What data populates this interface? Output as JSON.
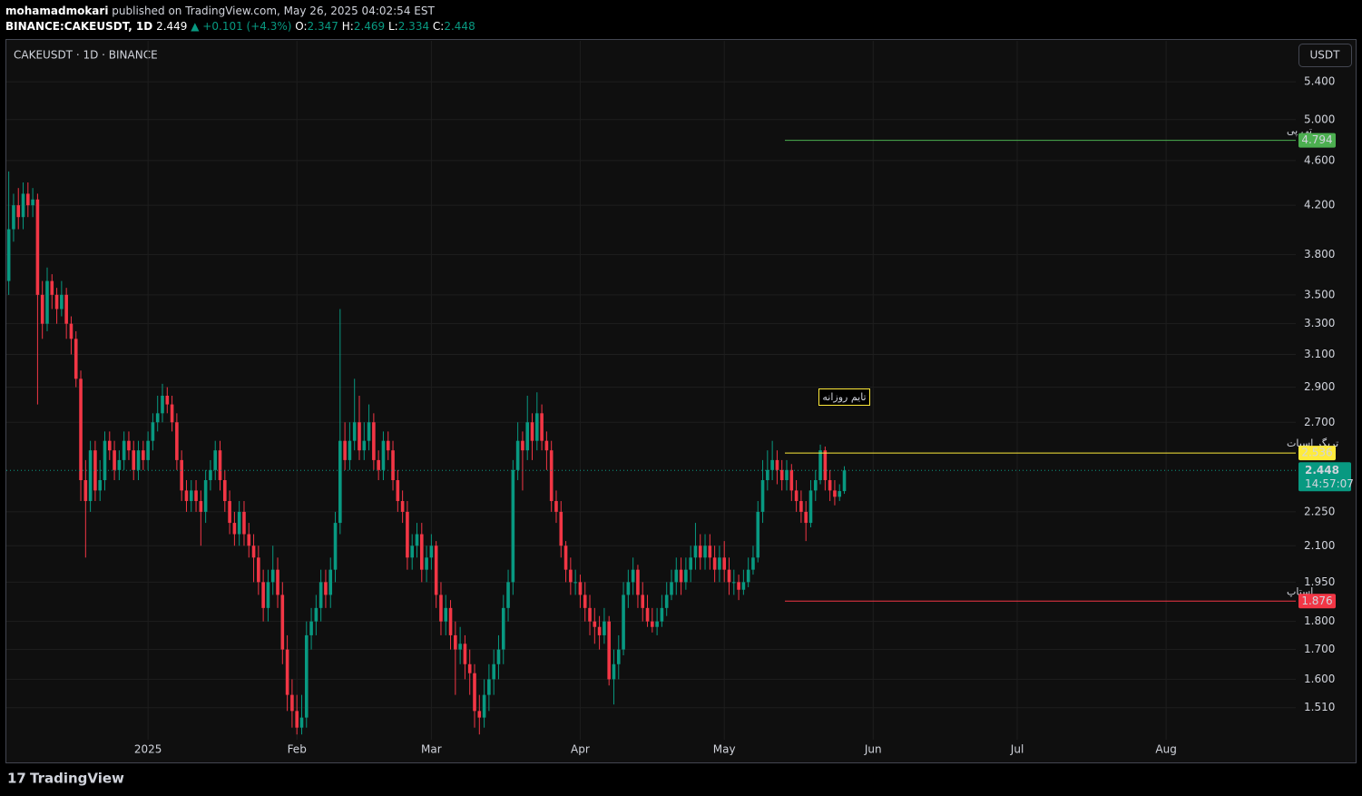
{
  "header": {
    "author": "mohamadmokari",
    "published": "published on TradingView.com, May 26, 2025 04:02:54 EST",
    "symbol": "BINANCE:CAKEUSDT, 1D",
    "last": "2.449",
    "change": "▲ +0.101 (+4.3%)",
    "legend": [
      {
        "label": "O:",
        "value": "2.347"
      },
      {
        "label": "H:",
        "value": "2.469"
      },
      {
        "label": "L:",
        "value": "2.334"
      },
      {
        "label": "C:",
        "value": "2.448"
      }
    ]
  },
  "pane_title": "CAKEUSDT · 1D · BINANCE",
  "currency": "USDT",
  "countdown": "14:57:07",
  "logo": "TradingView",
  "annotation": "تایم روزانه",
  "chart_data": {
    "type": "candlestick",
    "ylog": true,
    "grid": true,
    "up_color": "#089981",
    "down_color": "#f23645",
    "xlim": [
      -0.5,
      268
    ],
    "ylim": [
      1.42,
      5.87
    ],
    "xticks": [
      {
        "value": 29,
        "label": "2025"
      },
      {
        "value": 60,
        "label": "Feb"
      },
      {
        "value": 88,
        "label": "Mar"
      },
      {
        "value": 119,
        "label": "Apr"
      },
      {
        "value": 149,
        "label": "May"
      },
      {
        "value": 180,
        "label": "Jun"
      },
      {
        "value": 210,
        "label": "Jul"
      },
      {
        "value": 241,
        "label": "Aug"
      }
    ],
    "yticks": [
      {
        "value": 5.4,
        "label": "5.400"
      },
      {
        "value": 5,
        "label": "5.000"
      },
      {
        "value": 4.6,
        "label": "4.600"
      },
      {
        "value": 4.2,
        "label": "4.200"
      },
      {
        "value": 3.8,
        "label": "3.800"
      },
      {
        "value": 3.5,
        "label": "3.500"
      },
      {
        "value": 3.3,
        "label": "3.300"
      },
      {
        "value": 3.1,
        "label": "3.100"
      },
      {
        "value": 2.9,
        "label": "2.900"
      },
      {
        "value": 2.7,
        "label": "2.700"
      },
      {
        "value": 2.25,
        "label": "2.250"
      },
      {
        "value": 2.1,
        "label": "2.100"
      },
      {
        "value": 1.95,
        "label": "1.950"
      },
      {
        "value": 1.8,
        "label": "1.800"
      },
      {
        "value": 1.7,
        "label": "1.700"
      },
      {
        "value": 1.6,
        "label": "1.600"
      },
      {
        "value": 1.51,
        "label": "1.510"
      }
    ],
    "levels": [
      {
        "label": "تی پی",
        "value": 4.794,
        "color": "#4caf50"
      },
      {
        "label": "تریگر اسپات",
        "value": 2.536,
        "color": "#ffeb3b"
      },
      {
        "label": "استاپ",
        "value": 1.876,
        "color": "#f23645"
      }
    ],
    "ohlc": [
      [
        3.6,
        4.5,
        3.5,
        4.0
      ],
      [
        4.0,
        4.3,
        3.9,
        4.2
      ],
      [
        4.2,
        4.35,
        4.0,
        4.1
      ],
      [
        4.1,
        4.4,
        4.0,
        4.3
      ],
      [
        4.3,
        4.4,
        4.1,
        4.2
      ],
      [
        4.2,
        4.35,
        4.1,
        4.25
      ],
      [
        4.25,
        4.3,
        2.8,
        3.5
      ],
      [
        3.5,
        3.6,
        3.2,
        3.3
      ],
      [
        3.3,
        3.7,
        3.25,
        3.6
      ],
      [
        3.6,
        3.65,
        3.4,
        3.5
      ],
      [
        3.5,
        3.55,
        3.3,
        3.4
      ],
      [
        3.4,
        3.6,
        3.35,
        3.5
      ],
      [
        3.5,
        3.55,
        3.2,
        3.3
      ],
      [
        3.3,
        3.35,
        3.1,
        3.2
      ],
      [
        3.2,
        3.25,
        2.9,
        2.95
      ],
      [
        2.95,
        3.0,
        2.3,
        2.4
      ],
      [
        2.4,
        2.5,
        2.05,
        2.3
      ],
      [
        2.3,
        2.6,
        2.25,
        2.55
      ],
      [
        2.55,
        2.6,
        2.3,
        2.35
      ],
      [
        2.35,
        2.5,
        2.3,
        2.4
      ],
      [
        2.4,
        2.65,
        2.35,
        2.6
      ],
      [
        2.6,
        2.65,
        2.5,
        2.55
      ],
      [
        2.55,
        2.6,
        2.4,
        2.45
      ],
      [
        2.45,
        2.55,
        2.4,
        2.5
      ],
      [
        2.5,
        2.65,
        2.45,
        2.6
      ],
      [
        2.6,
        2.65,
        2.5,
        2.55
      ],
      [
        2.55,
        2.6,
        2.4,
        2.45
      ],
      [
        2.45,
        2.6,
        2.4,
        2.55
      ],
      [
        2.55,
        2.6,
        2.45,
        2.5
      ],
      [
        2.5,
        2.65,
        2.45,
        2.6
      ],
      [
        2.6,
        2.75,
        2.55,
        2.7
      ],
      [
        2.7,
        2.85,
        2.65,
        2.75
      ],
      [
        2.75,
        2.92,
        2.7,
        2.85
      ],
      [
        2.85,
        2.9,
        2.75,
        2.8
      ],
      [
        2.8,
        2.85,
        2.65,
        2.7
      ],
      [
        2.7,
        2.75,
        2.45,
        2.5
      ],
      [
        2.5,
        2.55,
        2.3,
        2.35
      ],
      [
        2.35,
        2.4,
        2.25,
        2.3
      ],
      [
        2.3,
        2.4,
        2.25,
        2.35
      ],
      [
        2.35,
        2.4,
        2.25,
        2.3
      ],
      [
        2.3,
        2.35,
        2.1,
        2.25
      ],
      [
        2.25,
        2.45,
        2.2,
        2.4
      ],
      [
        2.4,
        2.5,
        2.35,
        2.45
      ],
      [
        2.45,
        2.6,
        2.4,
        2.55
      ],
      [
        2.55,
        2.6,
        2.35,
        2.4
      ],
      [
        2.4,
        2.45,
        2.25,
        2.3
      ],
      [
        2.3,
        2.35,
        2.15,
        2.2
      ],
      [
        2.2,
        2.25,
        2.1,
        2.15
      ],
      [
        2.15,
        2.3,
        2.1,
        2.25
      ],
      [
        2.25,
        2.3,
        2.1,
        2.15
      ],
      [
        2.15,
        2.2,
        2.05,
        2.1
      ],
      [
        2.1,
        2.15,
        1.95,
        2.05
      ],
      [
        2.05,
        2.1,
        1.9,
        1.95
      ],
      [
        1.95,
        2.0,
        1.8,
        1.85
      ],
      [
        1.85,
        2.0,
        1.8,
        1.95
      ],
      [
        1.95,
        2.1,
        1.9,
        2.0
      ],
      [
        2.0,
        2.05,
        1.85,
        1.9
      ],
      [
        1.9,
        1.95,
        1.65,
        1.7
      ],
      [
        1.7,
        1.75,
        1.5,
        1.55
      ],
      [
        1.55,
        1.6,
        1.45,
        1.5
      ],
      [
        1.5,
        1.55,
        1.43,
        1.45
      ],
      [
        1.45,
        1.55,
        1.43,
        1.48
      ],
      [
        1.48,
        1.8,
        1.45,
        1.75
      ],
      [
        1.75,
        1.85,
        1.7,
        1.8
      ],
      [
        1.8,
        1.9,
        1.75,
        1.85
      ],
      [
        1.85,
        2.0,
        1.8,
        1.95
      ],
      [
        1.95,
        2.0,
        1.85,
        1.9
      ],
      [
        1.9,
        2.05,
        1.85,
        2.0
      ],
      [
        2.0,
        2.25,
        1.95,
        2.2
      ],
      [
        2.2,
        3.4,
        2.15,
        2.6
      ],
      [
        2.6,
        2.7,
        2.45,
        2.5
      ],
      [
        2.5,
        2.7,
        2.45,
        2.6
      ],
      [
        2.6,
        2.95,
        2.55,
        2.7
      ],
      [
        2.7,
        2.85,
        2.5,
        2.55
      ],
      [
        2.55,
        2.7,
        2.5,
        2.6
      ],
      [
        2.6,
        2.8,
        2.55,
        2.7
      ],
      [
        2.7,
        2.75,
        2.45,
        2.5
      ],
      [
        2.5,
        2.55,
        2.4,
        2.45
      ],
      [
        2.45,
        2.65,
        2.4,
        2.6
      ],
      [
        2.6,
        2.65,
        2.5,
        2.55
      ],
      [
        2.55,
        2.6,
        2.35,
        2.4
      ],
      [
        2.4,
        2.45,
        2.25,
        2.3
      ],
      [
        2.3,
        2.35,
        2.2,
        2.25
      ],
      [
        2.25,
        2.3,
        2.0,
        2.05
      ],
      [
        2.05,
        2.15,
        2.0,
        2.1
      ],
      [
        2.1,
        2.2,
        2.05,
        2.15
      ],
      [
        2.15,
        2.2,
        1.95,
        2.0
      ],
      [
        2.0,
        2.1,
        1.95,
        2.05
      ],
      [
        2.05,
        2.15,
        2.0,
        2.1
      ],
      [
        2.1,
        2.12,
        1.85,
        1.9
      ],
      [
        1.9,
        1.95,
        1.75,
        1.8
      ],
      [
        1.8,
        1.9,
        1.75,
        1.85
      ],
      [
        1.85,
        1.88,
        1.7,
        1.75
      ],
      [
        1.75,
        1.8,
        1.55,
        1.7
      ],
      [
        1.7,
        1.78,
        1.65,
        1.72
      ],
      [
        1.72,
        1.75,
        1.6,
        1.65
      ],
      [
        1.65,
        1.7,
        1.55,
        1.62
      ],
      [
        1.62,
        1.65,
        1.45,
        1.5
      ],
      [
        1.5,
        1.55,
        1.43,
        1.48
      ],
      [
        1.48,
        1.6,
        1.45,
        1.55
      ],
      [
        1.55,
        1.65,
        1.5,
        1.6
      ],
      [
        1.6,
        1.7,
        1.55,
        1.65
      ],
      [
        1.65,
        1.75,
        1.6,
        1.7
      ],
      [
        1.7,
        1.9,
        1.65,
        1.85
      ],
      [
        1.85,
        2.0,
        1.8,
        1.95
      ],
      [
        1.95,
        2.5,
        1.9,
        2.45
      ],
      [
        2.45,
        2.7,
        2.4,
        2.6
      ],
      [
        2.6,
        2.65,
        2.35,
        2.55
      ],
      [
        2.55,
        2.85,
        2.5,
        2.7
      ],
      [
        2.7,
        2.75,
        2.5,
        2.6
      ],
      [
        2.6,
        2.87,
        2.55,
        2.75
      ],
      [
        2.75,
        2.8,
        2.55,
        2.6
      ],
      [
        2.6,
        2.65,
        2.45,
        2.55
      ],
      [
        2.55,
        2.6,
        2.25,
        2.3
      ],
      [
        2.3,
        2.35,
        2.2,
        2.25
      ],
      [
        2.25,
        2.3,
        2.05,
        2.1
      ],
      [
        2.1,
        2.12,
        1.95,
        2.0
      ],
      [
        2.0,
        2.05,
        1.9,
        1.95
      ],
      [
        1.95,
        2.0,
        1.9,
        1.95
      ],
      [
        1.95,
        1.98,
        1.85,
        1.9
      ],
      [
        1.9,
        1.95,
        1.8,
        1.85
      ],
      [
        1.85,
        1.9,
        1.75,
        1.8
      ],
      [
        1.8,
        1.85,
        1.72,
        1.78
      ],
      [
        1.78,
        1.82,
        1.7,
        1.75
      ],
      [
        1.75,
        1.85,
        1.72,
        1.8
      ],
      [
        1.8,
        1.82,
        1.58,
        1.6
      ],
      [
        1.6,
        1.7,
        1.52,
        1.65
      ],
      [
        1.65,
        1.75,
        1.6,
        1.7
      ],
      [
        1.7,
        1.95,
        1.68,
        1.9
      ],
      [
        1.9,
        2.0,
        1.85,
        1.95
      ],
      [
        1.95,
        2.05,
        1.9,
        2.0
      ],
      [
        2.0,
        2.02,
        1.85,
        1.9
      ],
      [
        1.9,
        1.95,
        1.8,
        1.85
      ],
      [
        1.85,
        1.9,
        1.78,
        1.8
      ],
      [
        1.8,
        1.85,
        1.76,
        1.78
      ],
      [
        1.78,
        1.85,
        1.75,
        1.8
      ],
      [
        1.8,
        1.9,
        1.78,
        1.85
      ],
      [
        1.85,
        1.95,
        1.82,
        1.9
      ],
      [
        1.9,
        2.0,
        1.88,
        1.95
      ],
      [
        1.95,
        2.05,
        1.9,
        2.0
      ],
      [
        2.0,
        2.05,
        1.9,
        1.95
      ],
      [
        1.95,
        2.05,
        1.92,
        2.0
      ],
      [
        2.0,
        2.1,
        1.95,
        2.05
      ],
      [
        2.05,
        2.2,
        2.0,
        2.1
      ],
      [
        2.1,
        2.15,
        2.0,
        2.05
      ],
      [
        2.05,
        2.15,
        2.0,
        2.1
      ],
      [
        2.1,
        2.15,
        2.0,
        2.05
      ],
      [
        2.05,
        2.1,
        1.95,
        2.0
      ],
      [
        2.0,
        2.1,
        1.95,
        2.05
      ],
      [
        2.05,
        2.12,
        1.95,
        2.0
      ],
      [
        2.0,
        2.05,
        1.9,
        1.95
      ],
      [
        1.95,
        2.0,
        1.9,
        1.95
      ],
      [
        1.95,
        1.98,
        1.88,
        1.92
      ],
      [
        1.92,
        2.0,
        1.9,
        1.95
      ],
      [
        1.95,
        2.05,
        1.93,
        2.0
      ],
      [
        2.0,
        2.1,
        1.98,
        2.05
      ],
      [
        2.05,
        2.3,
        2.03,
        2.25
      ],
      [
        2.25,
        2.5,
        2.2,
        2.4
      ],
      [
        2.4,
        2.55,
        2.35,
        2.45
      ],
      [
        2.45,
        2.6,
        2.4,
        2.5
      ],
      [
        2.5,
        2.55,
        2.38,
        2.45
      ],
      [
        2.45,
        2.5,
        2.35,
        2.4
      ],
      [
        2.4,
        2.5,
        2.35,
        2.45
      ],
      [
        2.45,
        2.48,
        2.3,
        2.35
      ],
      [
        2.35,
        2.4,
        2.25,
        2.3
      ],
      [
        2.3,
        2.35,
        2.2,
        2.25
      ],
      [
        2.25,
        2.3,
        2.12,
        2.2
      ],
      [
        2.2,
        2.4,
        2.18,
        2.35
      ],
      [
        2.35,
        2.45,
        2.3,
        2.4
      ],
      [
        2.4,
        2.58,
        2.38,
        2.55
      ],
      [
        2.55,
        2.57,
        2.35,
        2.4
      ],
      [
        2.4,
        2.45,
        2.3,
        2.35
      ],
      [
        2.35,
        2.4,
        2.28,
        2.32
      ],
      [
        2.32,
        2.38,
        2.3,
        2.347
      ],
      [
        2.347,
        2.469,
        2.334,
        2.448
      ]
    ]
  }
}
